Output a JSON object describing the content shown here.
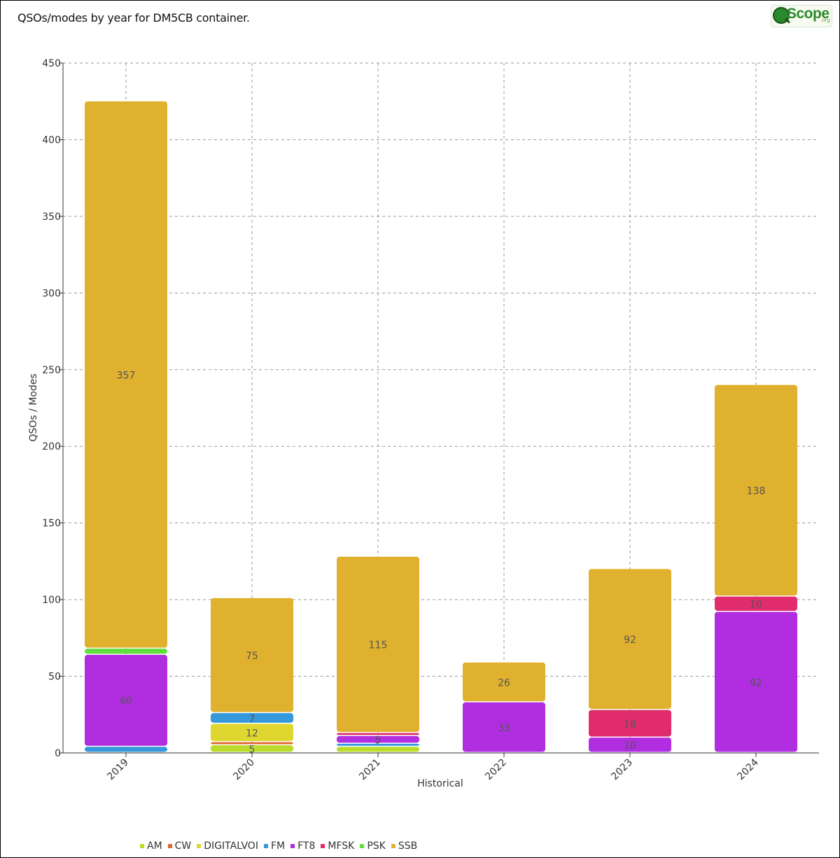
{
  "page": {
    "title": "QSOs/modes by year for DM5CB container.",
    "logo_text": "Scope",
    "logo_sub": ".org"
  },
  "chart_data": {
    "type": "bar",
    "stacked": true,
    "title": "QSOs/modes by year for DM5CB container.",
    "xlabel": "Historical",
    "ylabel": "QSOs / Modes",
    "ylim": [
      0,
      450
    ],
    "yticks": [
      0,
      50,
      100,
      150,
      200,
      250,
      300,
      350,
      400,
      450
    ],
    "grid": true,
    "legend_position": "bottom-left",
    "categories": [
      "2019",
      "2020",
      "2021",
      "2022",
      "2023",
      "2024"
    ],
    "series": [
      {
        "name": "AM",
        "color": "#bcdc2c",
        "values": [
          0,
          5,
          4,
          0,
          0,
          0
        ]
      },
      {
        "name": "CW",
        "color": "#e0672c",
        "values": [
          0,
          2,
          0,
          0,
          0,
          0
        ]
      },
      {
        "name": "DIGITALVOI",
        "color": "#dfd72f",
        "values": [
          0,
          12,
          0,
          0,
          0,
          0
        ]
      },
      {
        "name": "FM",
        "color": "#3498db",
        "values": [
          4,
          7,
          2,
          0,
          0,
          0
        ]
      },
      {
        "name": "FT8",
        "color": "#b02de0",
        "values": [
          60,
          0,
          5,
          33,
          10,
          92
        ]
      },
      {
        "name": "MFSK",
        "color": "#e02c6c",
        "values": [
          0,
          0,
          2,
          0,
          18,
          10
        ]
      },
      {
        "name": "PSK",
        "color": "#5ee03a",
        "values": [
          4,
          0,
          0,
          0,
          0,
          0
        ]
      },
      {
        "name": "SSB",
        "color": "#e0b12e",
        "values": [
          357,
          75,
          115,
          26,
          92,
          138
        ]
      }
    ],
    "data_labels": [
      {
        "category": "2019",
        "series": "FT8",
        "text": "60"
      },
      {
        "category": "2019",
        "series": "SSB",
        "text": "357"
      },
      {
        "category": "2020",
        "series": "AM",
        "text": "5"
      },
      {
        "category": "2020",
        "series": "DIGITALVOI",
        "text": "12"
      },
      {
        "category": "2020",
        "series": "FM",
        "text": "7"
      },
      {
        "category": "2020",
        "series": "SSB",
        "text": "75"
      },
      {
        "category": "2021",
        "series": "FT8",
        "text": "5"
      },
      {
        "category": "2021",
        "series": "SSB",
        "text": "115"
      },
      {
        "category": "2022",
        "series": "FT8",
        "text": "33"
      },
      {
        "category": "2022",
        "series": "SSB",
        "text": "26"
      },
      {
        "category": "2023",
        "series": "FT8",
        "text": "10"
      },
      {
        "category": "2023",
        "series": "MFSK",
        "text": "18"
      },
      {
        "category": "2023",
        "series": "SSB",
        "text": "92"
      },
      {
        "category": "2024",
        "series": "FT8",
        "text": "92"
      },
      {
        "category": "2024",
        "series": "MFSK",
        "text": "10"
      },
      {
        "category": "2024",
        "series": "SSB",
        "text": "138"
      }
    ]
  }
}
